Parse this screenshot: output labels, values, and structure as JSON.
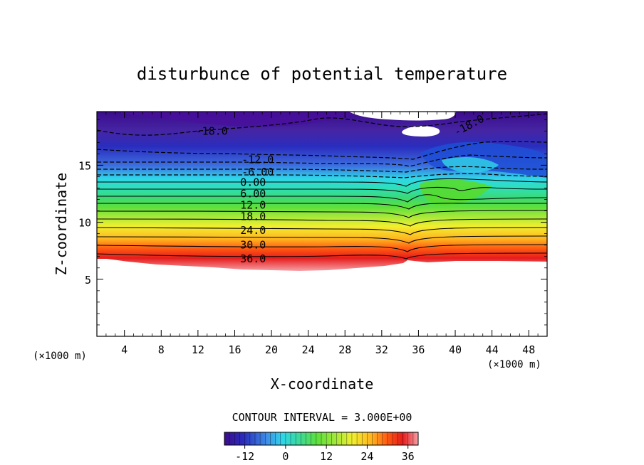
{
  "chart_data": {
    "type": "heatmap",
    "title": "disturbunce of potential temperature",
    "xlabel": "X-coordinate",
    "ylabel": "Z-coordinate",
    "x_unit": "(×1000 m)",
    "z_unit": "(×1000 m)",
    "xlim": [
      1,
      50
    ],
    "zlim": [
      0,
      19.7
    ],
    "x_ticks": [
      "4",
      "8",
      "12",
      "16",
      "20",
      "24",
      "28",
      "32",
      "36",
      "40",
      "44",
      "48"
    ],
    "z_ticks": [
      "5",
      "10",
      "15"
    ],
    "contour_interval_text": "CONTOUR INTERVAL = 3.000E+00",
    "contour_labels": [
      {
        "text": "-18.0",
        "x": 13.5,
        "z": 18.0
      },
      {
        "text": "-18.0",
        "x": 41.5,
        "z": 18.5
      },
      {
        "text": "-12.0",
        "x": 18.5,
        "z": 15.5
      },
      {
        "text": "-6.00",
        "x": 18.5,
        "z": 14.4
      },
      {
        "text": "0.00",
        "x": 18.0,
        "z": 13.5
      },
      {
        "text": "6.00",
        "x": 18.0,
        "z": 12.5
      },
      {
        "text": "12.0",
        "x": 18.0,
        "z": 11.5
      },
      {
        "text": "18.0",
        "x": 18.0,
        "z": 10.5
      },
      {
        "text": "24.0",
        "x": 18.0,
        "z": 9.3
      },
      {
        "text": "30.0",
        "x": 18.0,
        "z": 8.0
      },
      {
        "text": "36.0",
        "x": 18.0,
        "z": 6.8
      }
    ],
    "colorbar": {
      "min": -18,
      "max": 39,
      "ticks": [
        "-12",
        "0",
        "12",
        "24",
        "36"
      ]
    },
    "colors": {
      "levels": [
        "#3b0c8c",
        "#2a2dbe",
        "#3d6fe0",
        "#34b6e8",
        "#2fe0c9",
        "#3ad977",
        "#5ee03b",
        "#a8e83a",
        "#f2ef2f",
        "#ffb41f",
        "#ff5a12",
        "#e61c1c",
        "#f07a84"
      ]
    }
  }
}
